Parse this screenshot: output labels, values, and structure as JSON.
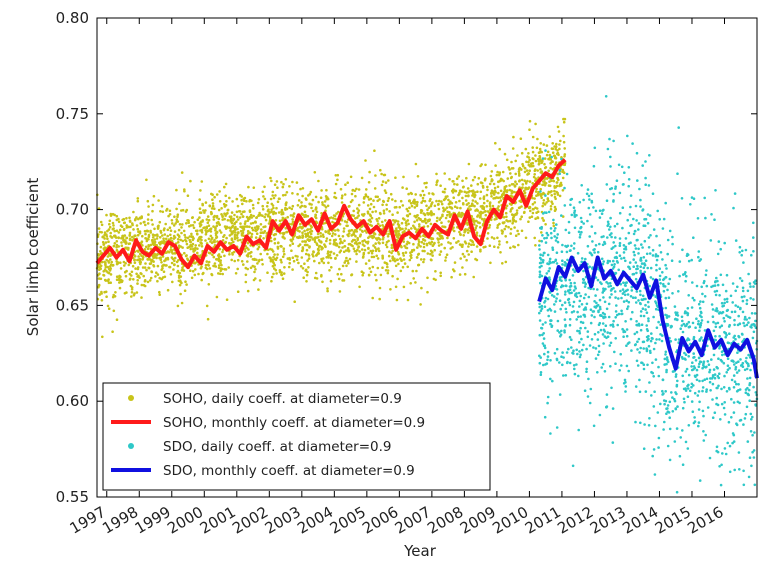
{
  "chart_data": {
    "type": "scatter",
    "xlabel": "Year",
    "ylabel": "Solar limb coefficient",
    "xlim": [
      1996.7,
      2017.0
    ],
    "ylim": [
      0.55,
      0.8
    ],
    "grid": false,
    "legend_position": "bottom-left",
    "x_tick_labels": [
      "1997",
      "1998",
      "1999",
      "2000",
      "2001",
      "2002",
      "2003",
      "2004",
      "2005",
      "2006",
      "2007",
      "2008",
      "2009",
      "2010",
      "2011",
      "2012",
      "2013",
      "2014",
      "2015",
      "2016"
    ],
    "y_ticks": [
      0.55,
      0.6,
      0.65,
      0.7,
      0.75,
      0.8
    ],
    "y_tick_labels": [
      "0.55",
      "0.60",
      "0.65",
      "0.70",
      "0.75",
      "0.80"
    ],
    "series": [
      {
        "name": "SOHO, daily coeff. at diameter=0.9",
        "kind": "scatter",
        "color": "#c8c41a",
        "x_range": [
          1996.7,
          2011.1
        ],
        "trend": [
          [
            1996.7,
            0.675
          ],
          [
            2002.0,
            0.688
          ],
          [
            2006.0,
            0.688
          ],
          [
            2008.5,
            0.697
          ],
          [
            2011.1,
            0.722
          ]
        ],
        "spread": 0.012
      },
      {
        "name": "SOHO, monthly coeff. at diameter=0.9",
        "kind": "line",
        "color": "#ff1a1a",
        "x": [
          1996.7,
          1996.9,
          1997.1,
          1997.3,
          1997.5,
          1997.7,
          1997.9,
          1998.1,
          1998.3,
          1998.5,
          1998.7,
          1998.9,
          1999.1,
          1999.3,
          1999.5,
          1999.7,
          1999.9,
          2000.1,
          2000.3,
          2000.5,
          2000.7,
          2000.9,
          2001.1,
          2001.3,
          2001.5,
          2001.7,
          2001.9,
          2002.1,
          2002.3,
          2002.5,
          2002.7,
          2002.9,
          2003.1,
          2003.3,
          2003.5,
          2003.7,
          2003.9,
          2004.1,
          2004.3,
          2004.5,
          2004.7,
          2004.9,
          2005.1,
          2005.3,
          2005.5,
          2005.7,
          2005.9,
          2006.1,
          2006.3,
          2006.5,
          2006.7,
          2006.9,
          2007.1,
          2007.3,
          2007.5,
          2007.7,
          2007.9,
          2008.1,
          2008.3,
          2008.5,
          2008.7,
          2008.9,
          2009.1,
          2009.3,
          2009.5,
          2009.7,
          2009.9,
          2010.1,
          2010.3,
          2010.5,
          2010.7,
          2010.9,
          2011.1
        ],
        "values": [
          0.672,
          0.676,
          0.68,
          0.675,
          0.679,
          0.673,
          0.684,
          0.678,
          0.676,
          0.68,
          0.677,
          0.683,
          0.681,
          0.674,
          0.67,
          0.676,
          0.672,
          0.681,
          0.678,
          0.683,
          0.679,
          0.681,
          0.677,
          0.686,
          0.682,
          0.684,
          0.68,
          0.694,
          0.689,
          0.694,
          0.687,
          0.697,
          0.692,
          0.695,
          0.689,
          0.698,
          0.69,
          0.693,
          0.702,
          0.695,
          0.691,
          0.694,
          0.688,
          0.691,
          0.687,
          0.694,
          0.679,
          0.686,
          0.688,
          0.685,
          0.69,
          0.686,
          0.692,
          0.689,
          0.687,
          0.697,
          0.69,
          0.699,
          0.686,
          0.682,
          0.694,
          0.7,
          0.696,
          0.707,
          0.704,
          0.71,
          0.702,
          0.711,
          0.715,
          0.719,
          0.717,
          0.723,
          0.726
        ]
      },
      {
        "name": "SDO, daily coeff. at diameter=0.9",
        "kind": "scatter",
        "color": "#2ec8c8",
        "x_range": [
          2010.3,
          2017.0
        ],
        "trend": [
          [
            2010.3,
            0.66
          ],
          [
            2013.5,
            0.66
          ],
          [
            2014.2,
            0.63
          ],
          [
            2017.0,
            0.625
          ]
        ],
        "spread": 0.03
      },
      {
        "name": "SDO, monthly coeff. at diameter=0.9",
        "kind": "line",
        "color": "#1010e0",
        "x": [
          2010.3,
          2010.5,
          2010.7,
          2010.9,
          2011.1,
          2011.3,
          2011.5,
          2011.7,
          2011.9,
          2012.1,
          2012.3,
          2012.5,
          2012.7,
          2012.9,
          2013.1,
          2013.3,
          2013.5,
          2013.7,
          2013.9,
          2014.1,
          2014.3,
          2014.5,
          2014.7,
          2014.9,
          2015.1,
          2015.3,
          2015.5,
          2015.7,
          2015.9,
          2016.1,
          2016.3,
          2016.5,
          2016.7,
          2016.9,
          2017.0
        ],
        "values": [
          0.652,
          0.664,
          0.658,
          0.67,
          0.665,
          0.675,
          0.668,
          0.672,
          0.66,
          0.675,
          0.664,
          0.668,
          0.661,
          0.667,
          0.663,
          0.659,
          0.666,
          0.654,
          0.663,
          0.642,
          0.628,
          0.617,
          0.633,
          0.626,
          0.631,
          0.624,
          0.637,
          0.628,
          0.632,
          0.624,
          0.63,
          0.627,
          0.632,
          0.622,
          0.612
        ]
      }
    ]
  }
}
